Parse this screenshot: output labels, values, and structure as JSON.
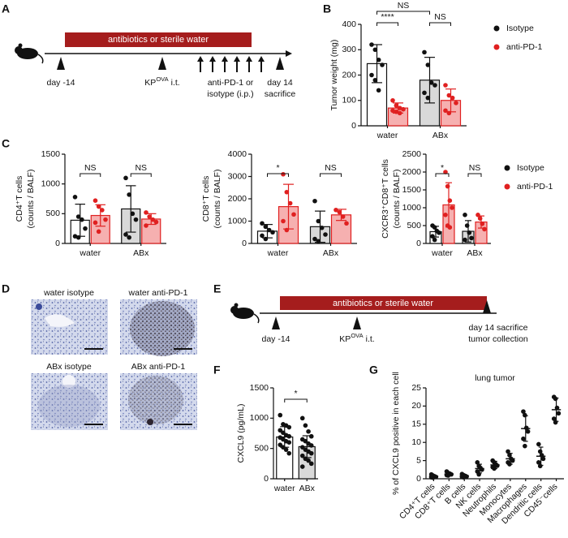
{
  "chart_data": [
    {
      "type": "bar",
      "panel": "B",
      "ylabel": [
        "Tumor weight (mg)"
      ],
      "categories": [
        "water",
        "ABx"
      ],
      "series": [
        {
          "name": "Isotype",
          "color": "#111111",
          "fills": [
            "#ffffff",
            "#d9d9d9"
          ],
          "values": [
            245,
            180
          ],
          "errors": [
            75,
            90
          ],
          "points": [
            [
              320,
              300,
              260,
              240,
              200,
              180,
              140
            ],
            [
              290,
              240,
              170,
              160,
              130,
              110
            ]
          ]
        },
        {
          "name": "anti-PD-1",
          "color": "#e02020",
          "fills": [
            "#f6b0b0",
            "#f6b0b0"
          ],
          "values": [
            70,
            100
          ],
          "errors": [
            20,
            45
          ],
          "points": [
            [
              100,
              80,
              70,
              65,
              60,
              55,
              50
            ],
            [
              160,
              120,
              110,
              90,
              60,
              50
            ]
          ]
        }
      ],
      "ylim": [
        0,
        400
      ],
      "yticks": [
        0,
        100,
        200,
        300,
        400
      ],
      "annotations": [
        "****",
        "NS",
        "NS"
      ],
      "legend": true
    },
    {
      "type": "bar",
      "panel": "C",
      "ylabel": [
        "CD4⁺T cells",
        "(counts / BALF)"
      ],
      "categories": [
        "water",
        "ABx"
      ],
      "series": [
        {
          "color": "#111111",
          "fills": [
            "#ffffff",
            "#d9d9d9"
          ],
          "values": [
            390,
            580
          ],
          "errors": [
            270,
            390
          ],
          "points": [
            [
              780,
              450,
              400,
              250,
              120,
              100
            ],
            [
              1100,
              820,
              500,
              400,
              150,
              100
            ]
          ]
        },
        {
          "color": "#e02020",
          "fills": [
            "#f6b0b0",
            "#f6b0b0"
          ],
          "values": [
            470,
            410
          ],
          "errors": [
            180,
            90
          ],
          "points": [
            [
              720,
              620,
              560,
              400,
              350,
              200
            ],
            [
              520,
              450,
              400,
              360,
              300
            ]
          ]
        }
      ],
      "ylim": [
        0,
        1500
      ],
      "yticks": [
        0,
        500,
        1000,
        1500
      ],
      "annotations": [
        "NS",
        "NS"
      ],
      "legend": false
    },
    {
      "type": "bar",
      "ylabel": [
        "CD8⁺T cells",
        "(counts / BALF)"
      ],
      "categories": [
        "water",
        "ABx"
      ],
      "series": [
        {
          "color": "#111111",
          "fills": [
            "#ffffff",
            "#d9d9d9"
          ],
          "values": [
            550,
            750
          ],
          "errors": [
            300,
            700
          ],
          "points": [
            [
              900,
              750,
              600,
              500,
              350,
              200
            ],
            [
              1900,
              1000,
              700,
              400,
              200,
              100
            ]
          ]
        },
        {
          "color": "#e02020",
          "fills": [
            "#f6b0b0",
            "#f6b0b0"
          ],
          "values": [
            1650,
            1280
          ],
          "errors": [
            1000,
            250
          ],
          "points": [
            [
              3100,
              2300,
              1800,
              1300,
              1000,
              600
            ],
            [
              1500,
              1400,
              1200,
              900
            ]
          ]
        }
      ],
      "ylim": [
        0,
        4000
      ],
      "yticks": [
        0,
        1000,
        2000,
        3000,
        4000
      ],
      "annotations": [
        "*",
        "NS"
      ],
      "legend": false
    },
    {
      "type": "bar",
      "ylabel": [
        "CXCR3⁺CD8⁺T cells",
        "(counts / BALF)"
      ],
      "categories": [
        "water",
        "ABx"
      ],
      "series": [
        {
          "name": "Isotype",
          "color": "#111111",
          "fills": [
            "#ffffff",
            "#d9d9d9"
          ],
          "values": [
            330,
            340
          ],
          "errors": [
            150,
            300
          ],
          "points": [
            [
              500,
              450,
              350,
              300,
              200,
              100
            ],
            [
              800,
              500,
              300,
              150,
              100
            ]
          ]
        },
        {
          "name": "anti-PD-1",
          "color": "#e02020",
          "fills": [
            "#f6b0b0",
            "#f6b0b0"
          ],
          "values": [
            1080,
            600
          ],
          "errors": [
            620,
            170
          ],
          "points": [
            [
              2000,
              1600,
              1200,
              1000,
              800,
              500,
              450
            ],
            [
              800,
              700,
              550,
              400
            ]
          ]
        }
      ],
      "ylim": [
        0,
        2500
      ],
      "yticks": [
        0,
        500,
        1000,
        1500,
        2000,
        2500
      ],
      "annotations": [
        "*",
        "NS"
      ],
      "legend": true
    },
    {
      "type": "bar",
      "panel": "F",
      "ylabel": [
        "CXCL9 (pg/mL)"
      ],
      "categories": [
        "water",
        "ABx"
      ],
      "series": [
        {
          "color": "#111111",
          "fills": [
            "#ffffff",
            "#d9d9d9"
          ],
          "values": [
            690,
            530
          ],
          "errors": [
            170,
            180
          ],
          "points": [
            [
              1050,
              900,
              880,
              850,
              800,
              760,
              720,
              700,
              680,
              650,
              620,
              600,
              560,
              520,
              480,
              420
            ],
            [
              1000,
              880,
              780,
              700,
              650,
              620,
              580,
              550,
              520,
              480,
              450,
              420,
              380,
              330,
              300,
              250,
              200
            ]
          ]
        }
      ],
      "ylim": [
        0,
        1500
      ],
      "yticks": [
        0,
        500,
        1000,
        1500
      ],
      "annotations": [
        "*"
      ],
      "legend": false
    },
    {
      "type": "dot",
      "panel": "G",
      "title": "lung tumor",
      "ylabel": [
        "% of CXCL9  positive in each cell"
      ],
      "categories": [
        "CD4⁺T cells",
        "CD8⁺T cells",
        "B cells",
        "NK cells",
        "Neutrophils",
        "Monocytes",
        "Macrophages",
        "Dendritic cells",
        "CD45⁻cells"
      ],
      "series": [
        {
          "color": "#111111",
          "values": [
            0.7,
            1.3,
            0.8,
            2.8,
            3.8,
            5.5,
            13.8,
            6.2,
            19
          ],
          "errors": [
            0.4,
            0.5,
            0.4,
            1.2,
            1,
            1.5,
            3.5,
            2.5,
            3.2
          ],
          "points": [
            [
              1.2,
              0.9,
              0.7,
              0.5,
              0.4,
              0.3
            ],
            [
              2.0,
              1.6,
              1.4,
              1.2,
              1.0,
              0.9
            ],
            [
              1.3,
              1.0,
              0.8,
              0.6,
              0.5,
              0.4
            ],
            [
              4.5,
              3.5,
              3.0,
              2.5,
              2.0,
              1.2
            ],
            [
              5.0,
              4.5,
              4.0,
              3.6,
              3.2,
              2.8
            ],
            [
              7.5,
              6.5,
              5.5,
              5.0,
              4.5,
              4.0
            ],
            [
              18.5,
              17.5,
              14.0,
              13.0,
              11.0,
              9.0
            ],
            [
              9.5,
              7.5,
              6.5,
              5.5,
              4.5,
              3.5
            ],
            [
              22.5,
              22.0,
              19.5,
              18.0,
              16.5,
              15.5
            ]
          ]
        }
      ],
      "ylim": [
        0,
        25
      ],
      "yticks": [
        0,
        5,
        10,
        15,
        20,
        25
      ],
      "annotations": [],
      "legend": false
    }
  ],
  "timeline_a": {
    "panel": "A",
    "bar_label": "antibiotics or sterile water",
    "start": "day -14",
    "injection": {
      "name": "KP",
      "superscript": "OVA",
      "route": "i.t."
    },
    "treatment": [
      "anti-PD-1 or",
      "isotype (i.p.)"
    ],
    "end": [
      "day 14",
      "sacrifice"
    ]
  },
  "images_d": {
    "panel": "D",
    "labels": [
      "water isotype",
      "water anti-PD-1",
      "ABx  isotype",
      "ABx anti-PD-1"
    ]
  },
  "timeline_e": {
    "panel": "E",
    "bar_label": "antibiotics or sterile water",
    "start": "day -14",
    "injection": {
      "name": "KP",
      "superscript": "OVA",
      "route": "i.t."
    },
    "end": [
      "day 14 sacrifice",
      "tumor collection"
    ]
  }
}
